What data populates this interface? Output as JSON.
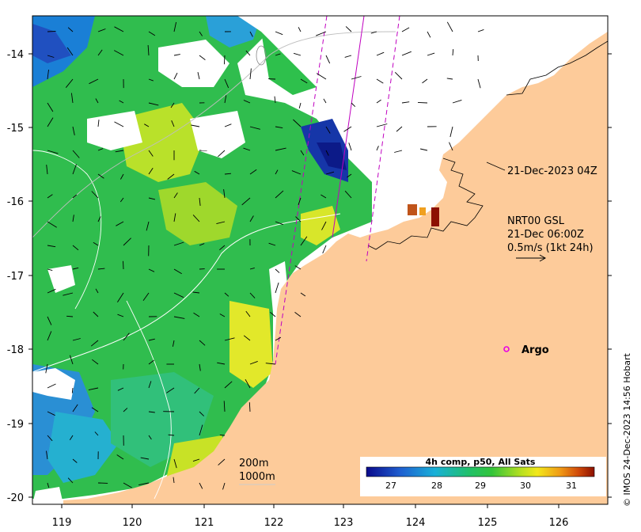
{
  "map": {
    "y_ticks": [
      "-14",
      "-15",
      "-16",
      "-17",
      "-18",
      "-19",
      "-20"
    ],
    "x_ticks": [
      "119",
      "120",
      "121",
      "122",
      "123",
      "124",
      "125",
      "126"
    ],
    "pass_label": "21-Dec-2023 04Z",
    "current": {
      "line1": "NRT00 GSL",
      "line2": "21-Dec 06:00Z",
      "line3": "0.5m/s (1kt 24h)"
    },
    "argo_label": "Argo",
    "isobaths": [
      "200m",
      "1000m"
    ],
    "colorbar": {
      "title": "4h comp, p50, All Sats",
      "ticks": [
        "27",
        "28",
        "29",
        "30",
        "31"
      ]
    },
    "credit": "© IMOS 24-Dec-2023 14:56 Hobart"
  },
  "colors": {
    "land": "#fdcb9a",
    "cold": "#0a1a8c",
    "mid": "#2fb84a",
    "warm": "#e6e81c",
    "hot": "#8c1000",
    "argo": "#e600e6"
  }
}
